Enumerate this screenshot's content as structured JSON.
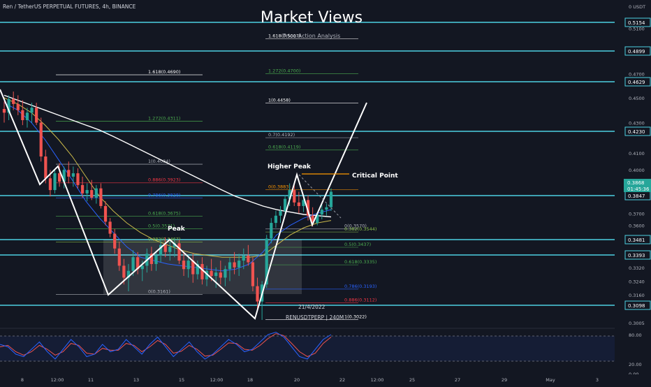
{
  "header": {
    "symbol_line": "Ren / TetherUS PERPETUAL FUTURES, 4h, BINANCE",
    "watermark_title": "Market Views",
    "watermark_sub": "Price Action Analysis"
  },
  "colors": {
    "background": "#131722",
    "cyan": "#4dd0e1",
    "up": "#26a69a",
    "down": "#ef5350",
    "ema_white": "#ffffff",
    "ema_yellow": "#c9b84a",
    "ema_blue": "#2962ff",
    "stoch_k": "#2962ff",
    "stoch_d": "#ef5350",
    "fib_red": "#f23645",
    "fib_green": "#4caf50",
    "fib_blue": "#2962ff",
    "fib_orange": "#ff9800"
  },
  "chart_data": {
    "type": "candlestick",
    "title": "Ren / TetherUS PERPETUAL FUTURES, 4h, BINANCE",
    "ylim": [
      0.298,
      0.53
    ],
    "grid": false,
    "x_ticks": [
      "8",
      "12:00",
      "11",
      "13",
      "15",
      "12:00",
      "18",
      "20",
      "22",
      "12:00",
      "25",
      "27",
      "29",
      "May",
      "3"
    ],
    "y_ticks": [
      "0.5100",
      "0.4700",
      "0.4500",
      "0.4300",
      "0.4100",
      "0.4000",
      "0.3900",
      "0.3700",
      "0.3600",
      "0.3400",
      "0.3320",
      "0.3240",
      "0.3160",
      "0.3005"
    ],
    "horizontal_levels": [
      "0.5154",
      "0.4899",
      "0.4629",
      "0.4230",
      "0.3847",
      "0.3481",
      "0.3393",
      "0.3098"
    ],
    "current_price": "0.3868",
    "countdown": "01:45:36",
    "top_label": "0 USDT",
    "candles": [
      {
        "o": 0.441,
        "h": 0.447,
        "l": 0.43,
        "c": 0.438
      },
      {
        "o": 0.438,
        "h": 0.452,
        "l": 0.432,
        "c": 0.449
      },
      {
        "o": 0.449,
        "h": 0.455,
        "l": 0.44,
        "c": 0.445
      },
      {
        "o": 0.445,
        "h": 0.452,
        "l": 0.436,
        "c": 0.44
      },
      {
        "o": 0.44,
        "h": 0.448,
        "l": 0.428,
        "c": 0.432
      },
      {
        "o": 0.432,
        "h": 0.442,
        "l": 0.426,
        "c": 0.438
      },
      {
        "o": 0.438,
        "h": 0.446,
        "l": 0.43,
        "c": 0.442
      },
      {
        "o": 0.442,
        "h": 0.446,
        "l": 0.428,
        "c": 0.43
      },
      {
        "o": 0.43,
        "h": 0.434,
        "l": 0.405,
        "c": 0.408
      },
      {
        "o": 0.408,
        "h": 0.412,
        "l": 0.392,
        "c": 0.395
      },
      {
        "o": 0.395,
        "h": 0.4,
        "l": 0.384,
        "c": 0.388
      },
      {
        "o": 0.388,
        "h": 0.4,
        "l": 0.386,
        "c": 0.398
      },
      {
        "o": 0.398,
        "h": 0.404,
        "l": 0.39,
        "c": 0.393
      },
      {
        "o": 0.393,
        "h": 0.402,
        "l": 0.389,
        "c": 0.4
      },
      {
        "o": 0.4,
        "h": 0.405,
        "l": 0.392,
        "c": 0.396
      },
      {
        "o": 0.396,
        "h": 0.402,
        "l": 0.39,
        "c": 0.398
      },
      {
        "o": 0.398,
        "h": 0.401,
        "l": 0.389,
        "c": 0.391
      },
      {
        "o": 0.391,
        "h": 0.396,
        "l": 0.383,
        "c": 0.386
      },
      {
        "o": 0.386,
        "h": 0.392,
        "l": 0.38,
        "c": 0.388
      },
      {
        "o": 0.388,
        "h": 0.394,
        "l": 0.381,
        "c": 0.383
      },
      {
        "o": 0.383,
        "h": 0.391,
        "l": 0.378,
        "c": 0.389
      },
      {
        "o": 0.389,
        "h": 0.392,
        "l": 0.374,
        "c": 0.376
      },
      {
        "o": 0.376,
        "h": 0.38,
        "l": 0.36,
        "c": 0.363
      },
      {
        "o": 0.363,
        "h": 0.366,
        "l": 0.35,
        "c": 0.353
      },
      {
        "o": 0.353,
        "h": 0.357,
        "l": 0.34,
        "c": 0.343
      },
      {
        "o": 0.343,
        "h": 0.347,
        "l": 0.33,
        "c": 0.333
      },
      {
        "o": 0.333,
        "h": 0.337,
        "l": 0.322,
        "c": 0.326
      },
      {
        "o": 0.326,
        "h": 0.334,
        "l": 0.318,
        "c": 0.33
      },
      {
        "o": 0.33,
        "h": 0.342,
        "l": 0.327,
        "c": 0.338
      },
      {
        "o": 0.338,
        "h": 0.341,
        "l": 0.328,
        "c": 0.331
      },
      {
        "o": 0.331,
        "h": 0.336,
        "l": 0.324,
        "c": 0.333
      },
      {
        "o": 0.333,
        "h": 0.343,
        "l": 0.329,
        "c": 0.34
      },
      {
        "o": 0.34,
        "h": 0.344,
        "l": 0.33,
        "c": 0.334
      },
      {
        "o": 0.334,
        "h": 0.341,
        "l": 0.33,
        "c": 0.339
      },
      {
        "o": 0.339,
        "h": 0.348,
        "l": 0.335,
        "c": 0.345
      },
      {
        "o": 0.345,
        "h": 0.35,
        "l": 0.338,
        "c": 0.341
      },
      {
        "o": 0.341,
        "h": 0.347,
        "l": 0.336,
        "c": 0.344
      },
      {
        "o": 0.344,
        "h": 0.349,
        "l": 0.338,
        "c": 0.346
      },
      {
        "o": 0.346,
        "h": 0.348,
        "l": 0.334,
        "c": 0.336
      },
      {
        "o": 0.336,
        "h": 0.341,
        "l": 0.327,
        "c": 0.331
      },
      {
        "o": 0.331,
        "h": 0.339,
        "l": 0.326,
        "c": 0.336
      },
      {
        "o": 0.336,
        "h": 0.34,
        "l": 0.323,
        "c": 0.328
      },
      {
        "o": 0.328,
        "h": 0.336,
        "l": 0.325,
        "c": 0.334
      },
      {
        "o": 0.334,
        "h": 0.338,
        "l": 0.322,
        "c": 0.325
      },
      {
        "o": 0.325,
        "h": 0.333,
        "l": 0.321,
        "c": 0.33
      },
      {
        "o": 0.33,
        "h": 0.337,
        "l": 0.324,
        "c": 0.327
      },
      {
        "o": 0.327,
        "h": 0.332,
        "l": 0.32,
        "c": 0.329
      },
      {
        "o": 0.329,
        "h": 0.336,
        "l": 0.322,
        "c": 0.326
      },
      {
        "o": 0.326,
        "h": 0.333,
        "l": 0.321,
        "c": 0.331
      },
      {
        "o": 0.331,
        "h": 0.338,
        "l": 0.324,
        "c": 0.335
      },
      {
        "o": 0.335,
        "h": 0.341,
        "l": 0.328,
        "c": 0.332
      },
      {
        "o": 0.332,
        "h": 0.34,
        "l": 0.327,
        "c": 0.336
      },
      {
        "o": 0.336,
        "h": 0.343,
        "l": 0.331,
        "c": 0.339
      },
      {
        "o": 0.339,
        "h": 0.345,
        "l": 0.333,
        "c": 0.335
      },
      {
        "o": 0.335,
        "h": 0.338,
        "l": 0.318,
        "c": 0.321
      },
      {
        "o": 0.321,
        "h": 0.326,
        "l": 0.308,
        "c": 0.312
      },
      {
        "o": 0.312,
        "h": 0.324,
        "l": 0.302,
        "c": 0.322
      },
      {
        "o": 0.322,
        "h": 0.352,
        "l": 0.32,
        "c": 0.349
      },
      {
        "o": 0.349,
        "h": 0.366,
        "l": 0.346,
        "c": 0.362
      },
      {
        "o": 0.362,
        "h": 0.372,
        "l": 0.358,
        "c": 0.368
      },
      {
        "o": 0.368,
        "h": 0.376,
        "l": 0.362,
        "c": 0.372
      },
      {
        "o": 0.372,
        "h": 0.385,
        "l": 0.369,
        "c": 0.382
      },
      {
        "o": 0.382,
        "h": 0.392,
        "l": 0.376,
        "c": 0.388
      },
      {
        "o": 0.388,
        "h": 0.391,
        "l": 0.376,
        "c": 0.379
      },
      {
        "o": 0.379,
        "h": 0.387,
        "l": 0.37,
        "c": 0.376
      },
      {
        "o": 0.376,
        "h": 0.384,
        "l": 0.371,
        "c": 0.381
      },
      {
        "o": 0.381,
        "h": 0.385,
        "l": 0.364,
        "c": 0.368
      },
      {
        "o": 0.368,
        "h": 0.375,
        "l": 0.359,
        "c": 0.362
      },
      {
        "o": 0.362,
        "h": 0.371,
        "l": 0.36,
        "c": 0.369
      },
      {
        "o": 0.369,
        "h": 0.377,
        "l": 0.365,
        "c": 0.373
      },
      {
        "o": 0.373,
        "h": 0.378,
        "l": 0.368,
        "c": 0.375
      },
      {
        "o": 0.375,
        "h": 0.389,
        "l": 0.372,
        "c": 0.387
      }
    ],
    "moving_averages": [
      {
        "color": "white",
        "values": [
          0.452,
          0.448,
          0.444,
          0.44,
          0.436,
          0.432,
          0.428,
          0.424,
          0.42,
          0.416,
          0.412,
          0.408,
          0.404,
          0.4,
          0.396,
          0.392,
          0.388,
          0.384,
          0.38,
          0.376,
          0.373,
          0.371,
          0.369,
          0.368,
          0.367
        ]
      },
      {
        "color": "yellow",
        "values": [
          0.45,
          0.445,
          0.438,
          0.428,
          0.418,
          0.408,
          0.396,
          0.384,
          0.372,
          0.362,
          0.354,
          0.348,
          0.345,
          0.342,
          0.34,
          0.339,
          0.338,
          0.338,
          0.338,
          0.339,
          0.345,
          0.352,
          0.358,
          0.362,
          0.364
        ]
      },
      {
        "color": "blue",
        "values": [
          0.446,
          0.44,
          0.43,
          0.418,
          0.406,
          0.394,
          0.38,
          0.366,
          0.354,
          0.344,
          0.338,
          0.336,
          0.334,
          0.333,
          0.332,
          0.331,
          0.33,
          0.331,
          0.334,
          0.341,
          0.352,
          0.36,
          0.366,
          0.37,
          0.373
        ]
      }
    ],
    "fibonacci_left": [
      {
        "label": "1.618(0.4690)",
        "value": 0.469
      },
      {
        "label": "1.272(0.4311)",
        "value": 0.4311
      },
      {
        "label": "1(0.4034)",
        "value": 0.4034
      },
      {
        "label": "0.886(0.3923)",
        "value": 0.3923
      },
      {
        "label": "0.786(0.3828)",
        "value": 0.3828
      },
      {
        "label": "0.618(0.3675)",
        "value": 0.3675
      },
      {
        "label": "0.5(0.3571)",
        "value": 0.3571
      },
      {
        "label": "0.382(0.3467)",
        "value": 0.3467
      },
      {
        "label": "0(0.3161)",
        "value": 0.3161
      }
    ],
    "fibonacci_right": [
      {
        "label": "1.618(0.5007)",
        "value": 0.5007
      },
      {
        "label": "1.272(0.4700)",
        "value": 0.47
      },
      {
        "label": "1(0.4458)",
        "value": 0.4458
      },
      {
        "label": "0.7(0.4192)",
        "value": 0.4192
      },
      {
        "label": "0.618(0.4119)",
        "value": 0.4119
      },
      {
        "label": "0(0.3883)",
        "value": 0.3883
      },
      {
        "label": "0(0.3570)",
        "value": 0.357
      },
      {
        "label": "0.382(0.3544)",
        "value": 0.3544
      },
      {
        "label": "0.5(0.3437)",
        "value": 0.3437
      },
      {
        "label": "0.618(0.3335)",
        "value": 0.3335
      },
      {
        "label": "0.786(0.3193)",
        "value": 0.3193
      },
      {
        "label": "0.886(0.3112)",
        "value": 0.3112
      },
      {
        "label": "1(0.3022)",
        "value": 0.3022
      }
    ],
    "annotations": [
      "Peak",
      "Higher Peak",
      "Critical Point",
      "21/4/2022",
      "RENUSDTPERP | 240M"
    ],
    "oscillator": {
      "y_ticks": [
        "80.00",
        "20.00",
        "0.00"
      ],
      "k": [
        60,
        55,
        40,
        35,
        50,
        65,
        45,
        30,
        50,
        70,
        55,
        35,
        40,
        60,
        45,
        50,
        70,
        55,
        40,
        60,
        75,
        55,
        35,
        50,
        65,
        45,
        30,
        40,
        55,
        70,
        60,
        45,
        50,
        65,
        80,
        85,
        75,
        55,
        35,
        30,
        50,
        70,
        80
      ],
      "d": [
        55,
        58,
        45,
        38,
        45,
        58,
        50,
        38,
        45,
        62,
        58,
        42,
        40,
        52,
        48,
        48,
        62,
        58,
        45,
        55,
        68,
        60,
        42,
        46,
        58,
        50,
        36,
        38,
        50,
        63,
        62,
        50,
        48,
        58,
        72,
        82,
        78,
        62,
        45,
        35,
        42,
        62,
        75
      ]
    }
  }
}
